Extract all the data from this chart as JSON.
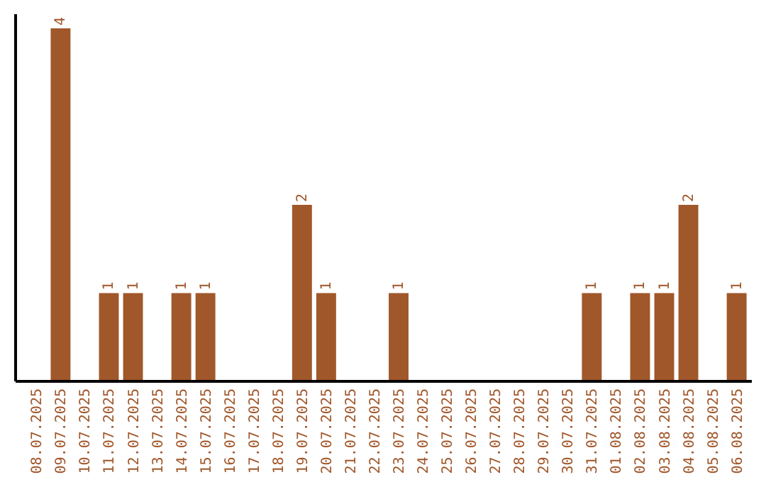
{
  "chart_data": {
    "type": "bar",
    "categories": [
      "08.07.2025",
      "09.07.2025",
      "10.07.2025",
      "11.07.2025",
      "12.07.2025",
      "13.07.2025",
      "14.07.2025",
      "15.07.2025",
      "16.07.2025",
      "17.07.2025",
      "18.07.2025",
      "19.07.2025",
      "20.07.2025",
      "21.07.2025",
      "22.07.2025",
      "23.07.2025",
      "24.07.2025",
      "25.07.2025",
      "26.07.2025",
      "27.07.2025",
      "28.07.2025",
      "29.07.2025",
      "30.07.2025",
      "31.07.2025",
      "01.08.2025",
      "02.08.2025",
      "03.08.2025",
      "04.08.2025",
      "05.08.2025",
      "06.08.2025"
    ],
    "values": [
      0,
      4,
      0,
      1,
      1,
      0,
      1,
      1,
      0,
      0,
      0,
      2,
      1,
      0,
      0,
      1,
      0,
      0,
      0,
      0,
      0,
      0,
      0,
      1,
      0,
      1,
      1,
      2,
      0,
      1
    ],
    "value_labels": [
      null,
      "4",
      null,
      "1",
      "1",
      null,
      "1",
      "1",
      null,
      null,
      null,
      "2",
      "1",
      null,
      null,
      "1",
      null,
      null,
      null,
      null,
      null,
      null,
      null,
      "1",
      null,
      "1",
      "1",
      "2",
      null,
      "1"
    ],
    "color": "#a0572a"
  }
}
